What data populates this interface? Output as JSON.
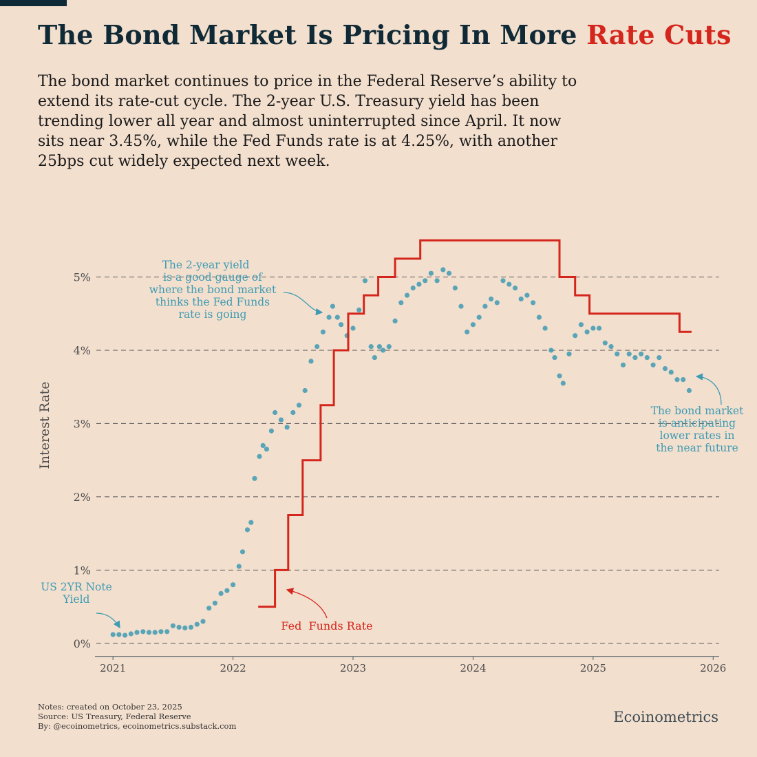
{
  "header": {
    "title_main": "The Bond Market Is Pricing In More ",
    "title_accent": "Rate Cuts",
    "subtitle": "The bond market continues to price in the Federal Reserve’s ability to extend its rate-cut cycle. The 2-year U.S. Treasury yield has been trending lower all year and almost uninterrupted since April. It now sits near 3.45%, while the Fed Funds rate is at 4.25%, with another 25bps cut widely expected next week."
  },
  "colors": {
    "background": "#f3dfce",
    "title_dark": "#0f2a36",
    "accent_red": "#d4261c",
    "yield_blue": "#3d9bb3",
    "grid": "#555555"
  },
  "chart_data": {
    "type": "scatter",
    "ylabel": "Interest Rate",
    "xlabel": "",
    "xlim": [
      2020.85,
      2026.05
    ],
    "ylim": [
      -0.18,
      5.85
    ],
    "y_ticks": [
      0,
      1,
      2,
      3,
      4,
      5
    ],
    "y_tick_labels": [
      "0%",
      "1%",
      "2%",
      "3%",
      "4%",
      "5%"
    ],
    "x_ticks": [
      2021,
      2022,
      2023,
      2024,
      2025,
      2026
    ],
    "x_tick_labels": [
      "2021",
      "2022",
      "2023",
      "2024",
      "2025",
      "2026"
    ],
    "grid": "horizontal-dashed",
    "series": [
      {
        "name": "US 2YR Note Yield",
        "style": "dots",
        "x": [
          2021.0,
          2021.05,
          2021.1,
          2021.15,
          2021.2,
          2021.25,
          2021.3,
          2021.35,
          2021.4,
          2021.45,
          2021.5,
          2021.55,
          2021.6,
          2021.65,
          2021.7,
          2021.75,
          2021.8,
          2021.85,
          2021.9,
          2021.95,
          2022.0,
          2022.05,
          2022.08,
          2022.12,
          2022.15,
          2022.18,
          2022.22,
          2022.25,
          2022.28,
          2022.32,
          2022.35,
          2022.4,
          2022.45,
          2022.5,
          2022.55,
          2022.6,
          2022.65,
          2022.7,
          2022.75,
          2022.8,
          2022.83,
          2022.87,
          2022.9,
          2022.95,
          2023.0,
          2023.05,
          2023.1,
          2023.15,
          2023.18,
          2023.22,
          2023.25,
          2023.3,
          2023.35,
          2023.4,
          2023.45,
          2023.5,
          2023.55,
          2023.6,
          2023.65,
          2023.7,
          2023.75,
          2023.8,
          2023.85,
          2023.9,
          2023.95,
          2024.0,
          2024.05,
          2024.1,
          2024.15,
          2024.2,
          2024.25,
          2024.3,
          2024.35,
          2024.4,
          2024.45,
          2024.5,
          2024.55,
          2024.6,
          2024.65,
          2024.68,
          2024.72,
          2024.75,
          2024.8,
          2024.85,
          2024.9,
          2024.95,
          2025.0,
          2025.05,
          2025.1,
          2025.15,
          2025.2,
          2025.25,
          2025.3,
          2025.35,
          2025.4,
          2025.45,
          2025.5,
          2025.55,
          2025.6,
          2025.65,
          2025.7,
          2025.75,
          2025.8
        ],
        "y": [
          0.12,
          0.12,
          0.11,
          0.13,
          0.15,
          0.16,
          0.15,
          0.15,
          0.16,
          0.16,
          0.24,
          0.22,
          0.21,
          0.22,
          0.26,
          0.3,
          0.48,
          0.55,
          0.68,
          0.72,
          0.8,
          1.05,
          1.25,
          1.55,
          1.65,
          2.25,
          2.55,
          2.7,
          2.65,
          2.9,
          3.15,
          3.05,
          2.95,
          3.15,
          3.25,
          3.45,
          3.85,
          4.05,
          4.25,
          4.45,
          4.6,
          4.45,
          4.35,
          4.2,
          4.3,
          4.55,
          4.95,
          4.05,
          3.9,
          4.05,
          4.0,
          4.05,
          4.4,
          4.65,
          4.75,
          4.85,
          4.9,
          4.95,
          5.05,
          4.95,
          5.1,
          5.05,
          4.85,
          4.6,
          4.25,
          4.35,
          4.45,
          4.6,
          4.7,
          4.65,
          4.95,
          4.9,
          4.85,
          4.7,
          4.75,
          4.65,
          4.45,
          4.3,
          4.0,
          3.9,
          3.65,
          3.55,
          3.95,
          4.2,
          4.35,
          4.25,
          4.3,
          4.3,
          4.1,
          4.05,
          3.95,
          3.8,
          3.95,
          3.9,
          3.95,
          3.9,
          3.8,
          3.9,
          3.75,
          3.7,
          3.6,
          3.6,
          3.45
        ]
      },
      {
        "name": "Fed Funds Rate",
        "style": "step",
        "x": [
          2022.21,
          2022.35,
          2022.46,
          2022.58,
          2022.73,
          2022.84,
          2022.96,
          2023.09,
          2023.21,
          2023.35,
          2023.56,
          2024.72,
          2024.85,
          2024.97,
          2025.72,
          2025.82
        ],
        "y": [
          0.5,
          1.0,
          1.75,
          2.5,
          3.25,
          4.0,
          4.5,
          4.75,
          5.0,
          5.25,
          5.5,
          5.0,
          4.75,
          4.5,
          4.25,
          4.25
        ]
      }
    ],
    "annotations": {
      "gauge": [
        "The 2-year yield",
        "is a good gauge of",
        "where the bond market",
        "thinks the Fed Funds",
        "rate is going"
      ],
      "anticipating": [
        "The bond market",
        "is anticipating",
        "lower rates in",
        "the near future"
      ],
      "yield_label": [
        "US 2YR Note",
        "Yield"
      ],
      "fed_label": "Fed  Funds Rate"
    }
  },
  "footer": {
    "notes": "Notes: created on October 23, 2025",
    "source": "Source: US Treasury, Federal Reserve",
    "by": "By: @ecoinometrics, ecoinometrics.substack.com",
    "brand": "Ecoinometrics"
  }
}
